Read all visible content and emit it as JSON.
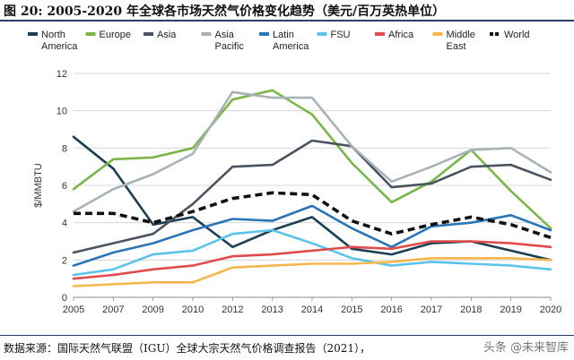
{
  "title": "图 20:  2005-2020 年全球各市场天然气价格变化趋势（美元/百万英热单位）",
  "source": "数据来源：国际天然气联盟（IGU）全球大宗天然气价格调查报告（2021），",
  "watermark": "头条 @未来智库",
  "chart_data": {
    "type": "line",
    "ylabel": "$/MMBTU",
    "xlabel": "",
    "ylim": [
      0,
      12
    ],
    "yticks": [
      0,
      2,
      4,
      6,
      8,
      10,
      12
    ],
    "x": [
      2005,
      2007,
      2009,
      2010,
      2012,
      2013,
      2014,
      2015,
      2016,
      2017,
      2018,
      2019,
      2020
    ],
    "xtick_labels": [
      "2005",
      "2007",
      "2009",
      "2010",
      "2012",
      "2013",
      "2014",
      "2015",
      "2016",
      "2017",
      "2018",
      "2019",
      "2020"
    ],
    "grid": "horizontal",
    "legend_position": "top",
    "series": [
      {
        "name": "North America",
        "color": "#1c3f52",
        "dash": false,
        "values": [
          8.6,
          6.9,
          3.9,
          4.3,
          2.7,
          3.6,
          4.3,
          2.6,
          2.3,
          2.9,
          3.0,
          2.5,
          2.0
        ]
      },
      {
        "name": "Europe",
        "color": "#7ab648",
        "dash": false,
        "values": [
          5.8,
          7.4,
          7.5,
          8.0,
          10.6,
          11.1,
          9.8,
          7.2,
          5.1,
          6.2,
          7.9,
          5.7,
          3.7
        ]
      },
      {
        "name": "Asia",
        "color": "#4a5360",
        "dash": false,
        "values": [
          2.4,
          2.9,
          3.4,
          5.0,
          7.0,
          7.1,
          8.4,
          8.1,
          5.9,
          6.1,
          7.0,
          7.1,
          6.3
        ]
      },
      {
        "name": "Asia Pacific",
        "color": "#a9b1b8",
        "dash": false,
        "values": [
          4.6,
          5.8,
          6.6,
          7.7,
          11.0,
          10.7,
          10.7,
          8.1,
          6.2,
          7.0,
          7.9,
          8.0,
          6.7
        ]
      },
      {
        "name": "Latin America",
        "color": "#2a74b8",
        "dash": false,
        "values": [
          1.7,
          2.4,
          2.9,
          3.6,
          4.2,
          4.1,
          4.9,
          3.7,
          2.7,
          3.8,
          4.0,
          4.4,
          3.6
        ]
      },
      {
        "name": "FSU",
        "color": "#5bc4ea",
        "dash": false,
        "values": [
          1.2,
          1.5,
          2.3,
          2.5,
          3.4,
          3.6,
          2.9,
          2.1,
          1.7,
          1.9,
          1.8,
          1.7,
          1.5
        ]
      },
      {
        "name": "Africa",
        "color": "#e24b4b",
        "dash": false,
        "values": [
          1.0,
          1.2,
          1.5,
          1.7,
          2.2,
          2.3,
          2.5,
          2.7,
          2.6,
          3.0,
          3.0,
          2.9,
          2.7
        ]
      },
      {
        "name": "Middle East",
        "color": "#f6b64e",
        "dash": false,
        "values": [
          0.6,
          0.7,
          0.8,
          0.8,
          1.6,
          1.7,
          1.8,
          1.8,
          1.9,
          2.1,
          2.1,
          2.1,
          2.0
        ]
      },
      {
        "name": "World",
        "color": "#111111",
        "dash": true,
        "values": [
          4.5,
          4.5,
          4.0,
          4.6,
          5.3,
          5.6,
          5.5,
          4.1,
          3.4,
          3.9,
          4.3,
          3.9,
          3.2
        ]
      }
    ],
    "legend_labels": [
      [
        "North",
        "America"
      ],
      [
        "Europe"
      ],
      [
        "Asia"
      ],
      [
        "Asia",
        "Pacific"
      ],
      [
        "Latin",
        "America"
      ],
      [
        "FSU"
      ],
      [
        "Africa"
      ],
      [
        "Middle",
        "East"
      ],
      [
        "World"
      ]
    ]
  }
}
